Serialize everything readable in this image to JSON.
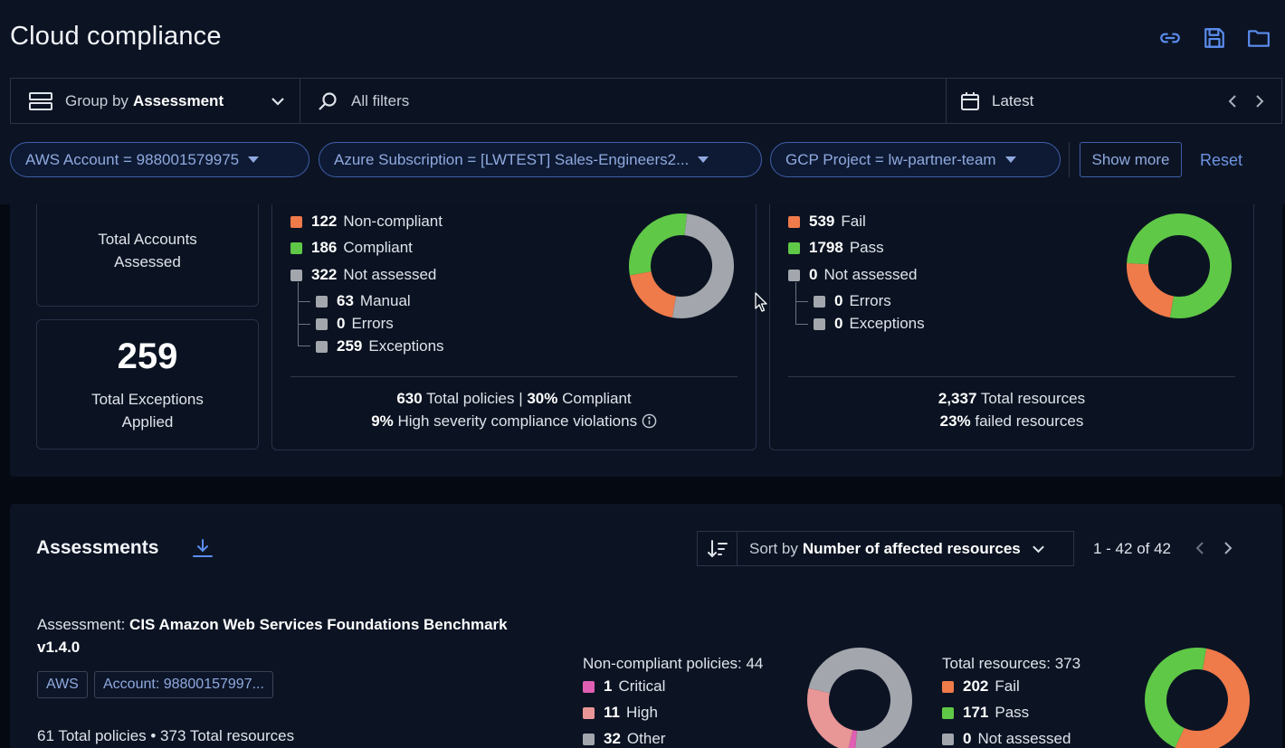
{
  "header": {
    "title": "Cloud compliance",
    "icons": [
      "link-icon",
      "save-icon",
      "folder-icon"
    ]
  },
  "toolbar": {
    "group_prefix": "Group by",
    "group_value": "Assessment",
    "filter_placeholder": "All filters",
    "date_value": "Latest"
  },
  "filters": {
    "chips": [
      "AWS Account = 988001579975",
      "Azure Subscription = [LWTEST] Sales-Engineers2...",
      "GCP Project = lw-partner-team"
    ],
    "show_more": "Show more",
    "reset": "Reset"
  },
  "stats": {
    "accounts_label_1": "Total Accounts",
    "accounts_label_2": "Assessed",
    "exceptions_value": "259",
    "exceptions_label_1": "Total Exceptions",
    "exceptions_label_2": "Applied"
  },
  "policies": {
    "noncompliant_value": "122",
    "noncompliant_label": "Non-compliant",
    "compliant_value": "186",
    "compliant_label": "Compliant",
    "not_assessed_value": "322",
    "not_assessed_label": "Not assessed",
    "manual_value": "63",
    "manual_label": "Manual",
    "errors_value": "0",
    "errors_label": "Errors",
    "exceptions_value": "259",
    "exceptions_label": "Exceptions",
    "footer_total": "630",
    "footer_total_label": "Total policies",
    "footer_pct": "30%",
    "footer_pct_label": "Compliant",
    "footer_sev": "9%",
    "footer_sev_label": "High severity compliance violations"
  },
  "resources": {
    "fail_value": "539",
    "fail_label": "Fail",
    "pass_value": "1798",
    "pass_label": "Pass",
    "not_assessed_value": "0",
    "not_assessed_label": "Not assessed",
    "errors_value": "0",
    "errors_label": "Errors",
    "exceptions_value": "0",
    "exceptions_label": "Exceptions",
    "footer_total": "2,337",
    "footer_total_label": "Total resources",
    "footer_failed": "23%",
    "footer_failed_label": "failed resources"
  },
  "assessments": {
    "title": "Assessments",
    "sort_prefix": "Sort by",
    "sort_value": "Number of affected resources",
    "pagination": "1 - 42 of 42",
    "item": {
      "prefix": "Assessment:",
      "name_line1": "CIS Amazon Web Services Foundations Benchmark",
      "name_line2": "v1.4.0",
      "tag_provider": "AWS",
      "tag_account": "Account: 98800157997...",
      "meta": "61 Total policies • 373 Total resources",
      "policies_title": "Non-compliant policies: 44",
      "critical_value": "1",
      "critical_label": "Critical",
      "high_value": "11",
      "high_label": "High",
      "other_value": "32",
      "other_label": "Other",
      "resources_title": "Total resources: 373",
      "fail_value": "202",
      "fail_label": "Fail",
      "pass_value": "171",
      "pass_label": "Pass",
      "na_value": "0",
      "na_label": "Not assessed"
    }
  },
  "colors": {
    "fail": "#ef7a4a",
    "pass": "#5fc847",
    "neutral": "#a3a7ad",
    "critical": "#e05fb3",
    "high": "#e89696",
    "accent": "#5b8def"
  },
  "donuts": {
    "policies": [
      {
        "label": "Non-compliant",
        "value": 122
      },
      {
        "label": "Compliant",
        "value": 186
      },
      {
        "label": "Not assessed",
        "value": 322
      }
    ],
    "resources": [
      {
        "label": "Fail",
        "value": 539
      },
      {
        "label": "Pass",
        "value": 1798
      }
    ],
    "assess_policies": [
      {
        "label": "Critical",
        "value": 1
      },
      {
        "label": "High",
        "value": 11
      },
      {
        "label": "Other",
        "value": 32
      }
    ],
    "assess_resources": [
      {
        "label": "Fail",
        "value": 202
      },
      {
        "label": "Pass",
        "value": 171
      }
    ]
  }
}
